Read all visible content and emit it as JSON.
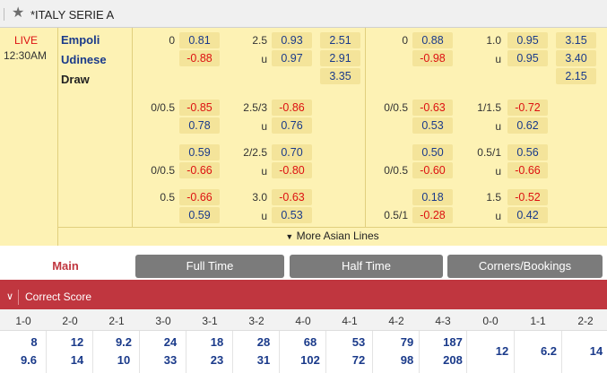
{
  "league": {
    "title": "*ITALY SERIE A",
    "star_icon": "star-icon"
  },
  "match": {
    "status": "LIVE",
    "time": "12:30AM",
    "home": "Empoli",
    "away": "Udinese",
    "draw": "Draw",
    "more_lines": "More Asian Lines"
  },
  "full_time": {
    "main": {
      "hdp_line": "0",
      "hdp_home": "0.81",
      "hdp_away": "-0.88",
      "ou_line": "2.5",
      "ou_over": "0.93",
      "ou_under_label": "u",
      "ou_under": "0.97",
      "x12_home": "2.51",
      "x12_away": "2.91",
      "x12_draw": "3.35"
    },
    "extra": [
      {
        "hdp_line_home": "0/0.5",
        "hdp_line_away": "",
        "hdp_home": "-0.85",
        "hdp_away": "0.78",
        "ou_line": "2.5/3",
        "ou_over": "-0.86",
        "ou_under_label": "u",
        "ou_under": "0.76"
      },
      {
        "hdp_line_home": "",
        "hdp_line_away": "0/0.5",
        "hdp_home": "0.59",
        "hdp_away": "-0.66",
        "ou_line": "2/2.5",
        "ou_over": "0.70",
        "ou_under_label": "u",
        "ou_under": "-0.80"
      },
      {
        "hdp_line_home": "0.5",
        "hdp_line_away": "",
        "hdp_home": "-0.66",
        "hdp_away": "0.59",
        "ou_line": "3.0",
        "ou_over": "-0.63",
        "ou_under_label": "u",
        "ou_under": "0.53"
      }
    ]
  },
  "first_half": {
    "main": {
      "hdp_line": "0",
      "hdp_home": "0.88",
      "hdp_away": "-0.98",
      "ou_line": "1.0",
      "ou_over": "0.95",
      "ou_under_label": "u",
      "ou_under": "0.95",
      "x12_home": "3.15",
      "x12_away": "3.40",
      "x12_draw": "2.15"
    },
    "extra": [
      {
        "hdp_line_home": "0/0.5",
        "hdp_line_away": "",
        "hdp_home": "-0.63",
        "hdp_away": "0.53",
        "ou_line": "1/1.5",
        "ou_over": "-0.72",
        "ou_under_label": "u",
        "ou_under": "0.62"
      },
      {
        "hdp_line_home": "",
        "hdp_line_away": "0/0.5",
        "hdp_home": "0.50",
        "hdp_away": "-0.60",
        "ou_line": "0.5/1",
        "ou_over": "0.56",
        "ou_under_label": "u",
        "ou_under": "-0.66"
      },
      {
        "hdp_line_home": "",
        "hdp_line_away": "0.5/1",
        "hdp_home": "0.18",
        "hdp_away": "-0.28",
        "ou_line": "1.5",
        "ou_over": "-0.52",
        "ou_under_label": "u",
        "ou_under": "0.42"
      }
    ]
  },
  "tabs": [
    {
      "label": "Main",
      "active": true
    },
    {
      "label": "Full Time",
      "active": false
    },
    {
      "label": "Half Time",
      "active": false
    },
    {
      "label": "Corners/Bookings",
      "active": false
    }
  ],
  "correct_score": {
    "title": "Correct Score",
    "columns": [
      "1-0",
      "2-0",
      "2-1",
      "3-0",
      "3-1",
      "3-2",
      "4-0",
      "4-1",
      "4-2",
      "4-3",
      "0-0",
      "1-1",
      "2-2"
    ],
    "home_row": [
      "8",
      "12",
      "9.2",
      "24",
      "18",
      "28",
      "68",
      "53",
      "79",
      "187",
      "12",
      "6.2",
      "14"
    ],
    "away_row": [
      "9.6",
      "14",
      "10",
      "33",
      "23",
      "31",
      "102",
      "72",
      "98",
      "208",
      "",
      "",
      ""
    ]
  },
  "colors": {
    "accent": "#c0363f",
    "odds_blue": "#1a3a8a",
    "odds_red": "#d11111",
    "row_bg": "#fdf2b4"
  }
}
